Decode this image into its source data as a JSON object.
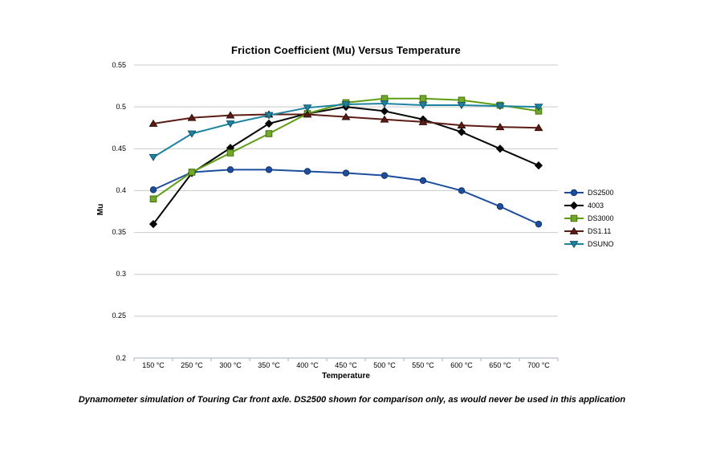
{
  "chart_data": {
    "type": "line",
    "title": "Friction Coefficient (Mu) Versus Temperature",
    "xlabel": "Temperature",
    "ylabel": "Mu",
    "categories": [
      "150 °C",
      "250 °C",
      "300 °C",
      "350 °C",
      "400 °C",
      "450 °C",
      "500 °C",
      "550 °C",
      "600 °C",
      "650 °C",
      "700 °C"
    ],
    "yticks": [
      "0.55",
      "0.5",
      "0.45",
      "0.4",
      "0.35",
      "0.3",
      "0.25",
      "0.2"
    ],
    "ylim": [
      0.2,
      0.55
    ],
    "grid": "horizontal",
    "legend_position": "right",
    "colors": {
      "gridline": "#c9c9c9",
      "axis_line": "#a9b2b8",
      "text": "#000000"
    },
    "series": [
      {
        "name": "DS2500",
        "marker": "circle",
        "color": "#1d4e9e",
        "marker_fill": "#1d4e9e",
        "marker_edge": "#123268",
        "values": [
          0.401,
          0.422,
          0.425,
          0.425,
          0.423,
          0.421,
          0.418,
          0.412,
          0.4,
          0.381,
          0.36
        ]
      },
      {
        "name": "4003",
        "marker": "diamond",
        "color": "#070707",
        "marker_fill": "#070707",
        "marker_edge": "#070707",
        "values": [
          0.36,
          0.421,
          0.451,
          0.48,
          0.492,
          0.5,
          0.495,
          0.485,
          0.47,
          0.45,
          0.43
        ]
      },
      {
        "name": "DS3000",
        "marker": "square",
        "color": "#5f9e14",
        "marker_fill": "#72a829",
        "marker_edge": "#46700f",
        "values": [
          0.39,
          0.422,
          0.445,
          0.468,
          0.492,
          0.505,
          0.51,
          0.51,
          0.508,
          0.502,
          0.495
        ]
      },
      {
        "name": "DS1.11",
        "marker": "triangle-up",
        "color": "#5c1c14",
        "marker_fill": "#5c1c14",
        "marker_edge": "#2e0c07",
        "values": [
          0.48,
          0.487,
          0.49,
          0.491,
          0.491,
          0.488,
          0.485,
          0.482,
          0.478,
          0.476,
          0.475
        ]
      },
      {
        "name": "DSUNO",
        "marker": "triangle-down",
        "color": "#1e83a0",
        "marker_fill": "#1e83a0",
        "marker_edge": "#11566b",
        "values": [
          0.44,
          0.468,
          0.48,
          0.49,
          0.499,
          0.503,
          0.504,
          0.502,
          0.502,
          0.501,
          0.5
        ]
      }
    ]
  },
  "caption": "Dynamometer simulation of Touring Car front axle. DS2500 shown for comparison only, as would never be used in this application"
}
